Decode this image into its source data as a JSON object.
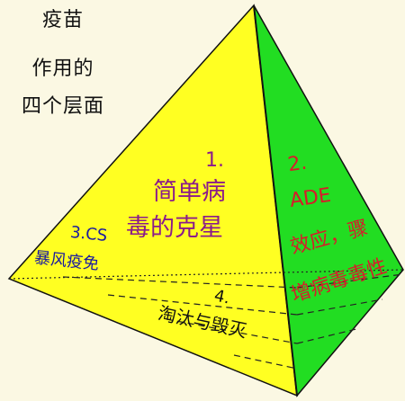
{
  "title": {
    "line1": "疫苗",
    "line2": "作用的",
    "line3": "四个层面"
  },
  "front_face": {
    "number": "1.",
    "line1": "简单病",
    "line2": "毒的克星",
    "color": "#ffff22"
  },
  "side_face": {
    "number": "2.",
    "line1": "ADE",
    "line2": "效应，骤",
    "line3": "增病毒毒性",
    "color": "#22dd22"
  },
  "layer3": {
    "number": "3.CS",
    "text": "暴风疫免"
  },
  "layer4": {
    "number": "4.",
    "text": "淘汰与毁灭"
  },
  "colors": {
    "background": "#fbf8e3",
    "yellow": "#ffff22",
    "green": "#22dd22",
    "purple": "#8b1c8a",
    "red": "#d81b2a",
    "outline": "#111111"
  }
}
